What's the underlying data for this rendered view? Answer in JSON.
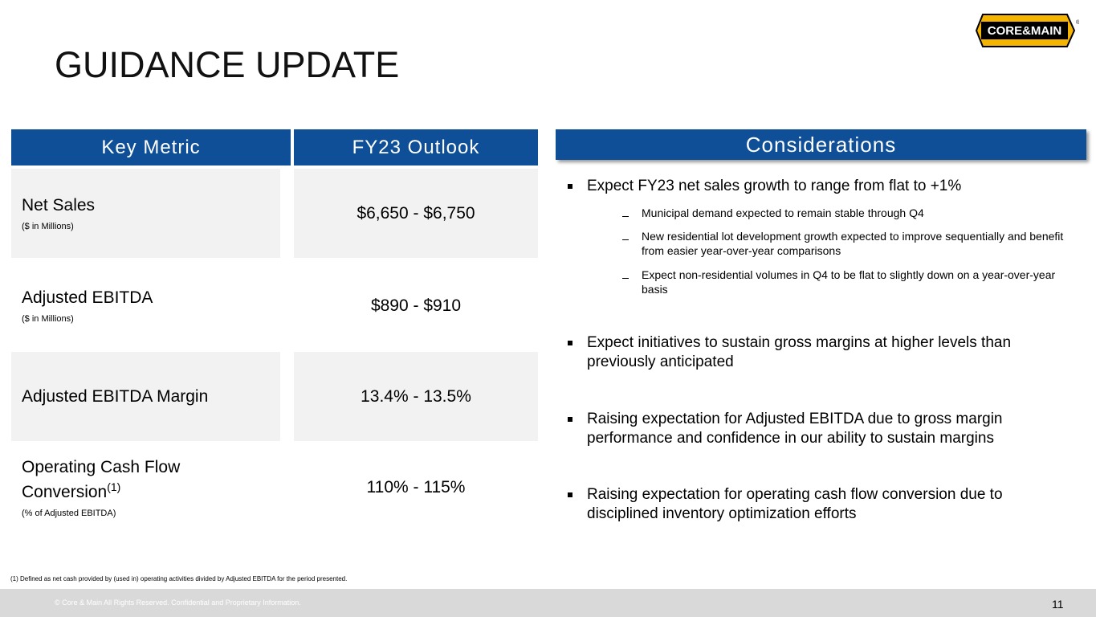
{
  "header": {
    "title": "GUIDANCE UPDATE",
    "logo": "CORE&MAIN",
    "logo_mark": "®"
  },
  "table": {
    "headers": [
      "Key Metric",
      "FY23 Outlook"
    ],
    "rows": [
      {
        "metric": "Net Sales",
        "superscript": null,
        "note": "($ in Millions)",
        "outlook": "$6,650 - $6,750"
      },
      {
        "metric": "Adjusted EBITDA",
        "superscript": null,
        "note": "($ in Millions)",
        "outlook": "$890 - $910"
      },
      {
        "metric": "Adjusted EBITDA Margin",
        "superscript": null,
        "note": null,
        "outlook": "13.4% - 13.5%"
      },
      {
        "metric": "Operating Cash Flow Conversion",
        "superscript": "(1)",
        "note": "(% of Adjusted EBITDA)",
        "outlook": "110% - 115%"
      }
    ]
  },
  "considerations": {
    "title": "Considerations",
    "bullets": [
      {
        "text": "Expect FY23 net sales growth to range from flat to +1%",
        "subs": [
          "Municipal demand expected to remain stable through Q4",
          "New residential lot development growth expected to improve sequentially and benefit from easier year-over-year comparisons",
          "Expect non-residential volumes in Q4 to be flat to slightly down on a year-over-year basis"
        ]
      },
      {
        "text": "Expect initiatives to sustain gross margins at higher levels than previously anticipated",
        "subs": []
      },
      {
        "text": "Raising expectation for Adjusted EBITDA due to gross margin performance and confidence in our ability to sustain margins",
        "subs": []
      },
      {
        "text": "Raising expectation for operating cash flow conversion due to disciplined inventory optimization efforts",
        "subs": []
      }
    ]
  },
  "footnote": "(1) Defined as net cash provided by (used in) operating activities divided by Adjusted EBITDA for the period presented.",
  "footer": {
    "copyright": "© Core & Main  All Rights Reserved. Confidential and Proprietary Information.",
    "page": "11"
  }
}
